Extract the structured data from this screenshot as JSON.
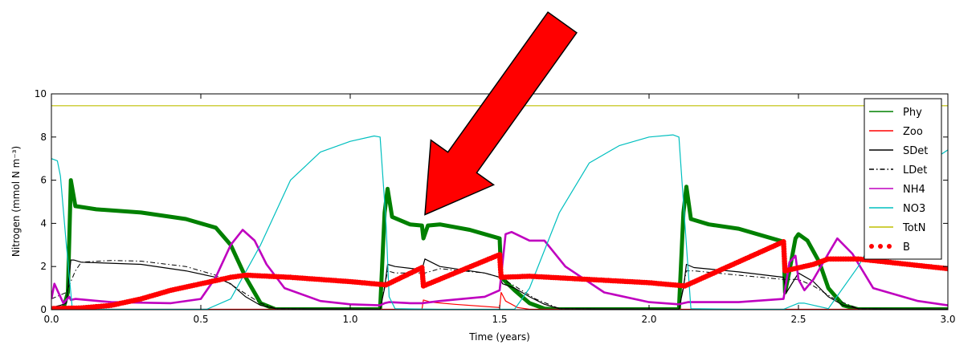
{
  "chart_data": {
    "type": "line",
    "title": "",
    "xlabel": "Time (years)",
    "ylabel": "Nitrogen (mmol N m⁻³)",
    "xlim": [
      0,
      3.0
    ],
    "ylim": [
      0,
      10
    ],
    "xticks": [
      0,
      0.5,
      1.0,
      1.5,
      2.0,
      2.5,
      3.0
    ],
    "xtick_labels": [
      "0.0",
      "0.5",
      "1.0",
      "1.5",
      "2.0",
      "2.5",
      "3.0"
    ],
    "yticks": [
      0,
      2,
      4,
      6,
      8,
      10
    ],
    "ytick_labels": [
      "0",
      "2",
      "4",
      "6",
      "8",
      "10"
    ],
    "grid": false,
    "legend_position": "top-right",
    "series": [
      {
        "name": "Phy",
        "color": "#008000",
        "style": "thick-band",
        "x": [
          0.0,
          0.04,
          0.055,
          0.065,
          0.08,
          0.15,
          0.3,
          0.45,
          0.55,
          0.6,
          0.65,
          0.7,
          0.75,
          1.0,
          1.1,
          1.115,
          1.125,
          1.14,
          1.2,
          1.24,
          1.245,
          1.26,
          1.3,
          1.4,
          1.5,
          1.505,
          1.55,
          1.6,
          1.65,
          1.7,
          2.0,
          2.1,
          2.115,
          2.125,
          2.14,
          2.2,
          2.3,
          2.45,
          2.455,
          2.47,
          2.49,
          2.5,
          2.53,
          2.57,
          2.6,
          2.65,
          2.7,
          3.0
        ],
        "y": [
          0.02,
          0.05,
          0.8,
          6.0,
          4.8,
          4.65,
          4.5,
          4.2,
          3.8,
          3.0,
          1.5,
          0.3,
          0.02,
          0.02,
          0.02,
          4.5,
          5.6,
          4.3,
          3.95,
          3.9,
          3.3,
          3.9,
          3.95,
          3.7,
          3.3,
          1.5,
          0.9,
          0.3,
          0.05,
          0.02,
          0.02,
          0.02,
          4.5,
          5.7,
          4.2,
          3.95,
          3.75,
          3.15,
          0.8,
          1.8,
          3.3,
          3.5,
          3.2,
          2.2,
          1.0,
          0.2,
          0.02,
          0.02
        ]
      },
      {
        "name": "Zoo",
        "color": "#ff0000",
        "style": "solid",
        "x": [
          0.0,
          1.12,
          1.2,
          1.24,
          1.245,
          1.27,
          1.35,
          1.5,
          1.505,
          1.52,
          1.56,
          1.6,
          2.0,
          3.0
        ],
        "y": [
          0.02,
          0.02,
          0.02,
          0.02,
          0.45,
          0.35,
          0.25,
          0.1,
          0.8,
          0.4,
          0.1,
          0.02,
          0.02,
          0.02
        ]
      },
      {
        "name": "SDet",
        "color": "#000000",
        "style": "solid",
        "x": [
          0.0,
          0.03,
          0.05,
          0.065,
          0.075,
          0.1,
          0.3,
          0.45,
          0.55,
          0.6,
          0.65,
          0.7,
          0.75,
          1.1,
          1.115,
          1.125,
          1.15,
          1.24,
          1.25,
          1.3,
          1.45,
          1.5,
          1.51,
          1.55,
          1.6,
          1.65,
          1.7,
          2.1,
          2.115,
          2.125,
          2.15,
          2.3,
          2.45,
          2.46,
          2.5,
          2.55,
          2.6,
          2.65,
          2.7,
          3.0
        ],
        "y": [
          0.1,
          0.2,
          0.3,
          2.3,
          2.3,
          2.2,
          2.1,
          1.8,
          1.5,
          1.2,
          0.6,
          0.2,
          0.05,
          0.02,
          1.0,
          2.1,
          2.0,
          1.85,
          2.35,
          2.0,
          1.7,
          1.5,
          1.2,
          1.0,
          0.6,
          0.25,
          0.05,
          0.02,
          1.0,
          2.1,
          1.95,
          1.75,
          1.5,
          0.8,
          1.7,
          1.3,
          0.6,
          0.2,
          0.05,
          0.02
        ]
      },
      {
        "name": "LDet",
        "color": "#000000",
        "style": "dash-dot",
        "x": [
          0.0,
          0.05,
          0.08,
          0.1,
          0.2,
          0.3,
          0.45,
          0.55,
          0.62,
          0.7,
          0.75,
          1.1,
          1.125,
          1.15,
          1.25,
          1.3,
          1.45,
          1.5,
          1.55,
          1.62,
          1.7,
          2.1,
          2.125,
          2.15,
          2.3,
          2.45,
          2.5,
          2.55,
          2.62,
          2.7,
          3.0
        ],
        "y": [
          0.5,
          0.8,
          1.8,
          2.2,
          2.28,
          2.25,
          2.0,
          1.6,
          1.0,
          0.3,
          0.05,
          0.02,
          1.8,
          1.7,
          1.7,
          1.9,
          1.7,
          1.5,
          1.1,
          0.5,
          0.05,
          0.02,
          1.8,
          1.8,
          1.6,
          1.4,
          1.4,
          1.1,
          0.5,
          0.05,
          0.02
        ]
      },
      {
        "name": "NH4",
        "color": "#bf00bf",
        "style": "thick-band-lower",
        "x": [
          0.0,
          0.01,
          0.02,
          0.04,
          0.06,
          0.065,
          0.08,
          0.2,
          0.4,
          0.5,
          0.55,
          0.6,
          0.64,
          0.68,
          0.72,
          0.78,
          0.9,
          1.0,
          1.1,
          1.115,
          1.13,
          1.2,
          1.24,
          1.3,
          1.45,
          1.5,
          1.52,
          1.54,
          1.6,
          1.65,
          1.72,
          1.85,
          2.0,
          2.1,
          2.115,
          2.13,
          2.3,
          2.45,
          2.47,
          2.49,
          2.5,
          2.52,
          2.55,
          2.6,
          2.63,
          2.68,
          2.75,
          2.9,
          3.0
        ],
        "y": [
          0.5,
          1.2,
          0.9,
          0.3,
          0.6,
          0.45,
          0.5,
          0.35,
          0.3,
          0.5,
          1.5,
          3.0,
          3.7,
          3.2,
          2.1,
          1.0,
          0.4,
          0.25,
          0.2,
          0.3,
          0.35,
          0.3,
          0.3,
          0.4,
          0.6,
          0.9,
          3.5,
          3.6,
          3.2,
          3.2,
          2.0,
          0.8,
          0.35,
          0.25,
          0.3,
          0.35,
          0.35,
          0.5,
          2.2,
          2.5,
          1.4,
          0.9,
          1.4,
          2.6,
          3.3,
          2.6,
          1.0,
          0.4,
          0.2
        ]
      },
      {
        "name": "NO3",
        "color": "#00bfbf",
        "style": "solid",
        "x": [
          0.0,
          0.02,
          0.03,
          0.05,
          0.07,
          0.1,
          0.3,
          0.52,
          0.6,
          0.7,
          0.8,
          0.9,
          1.0,
          1.08,
          1.1,
          1.12,
          1.13,
          1.15,
          1.3,
          1.5,
          1.52,
          1.55,
          1.6,
          1.7,
          1.8,
          1.9,
          2.0,
          2.08,
          2.1,
          2.12,
          2.14,
          2.3,
          2.45,
          2.5,
          2.52,
          2.6,
          2.7,
          2.8,
          2.9,
          3.0
        ],
        "y": [
          7.0,
          6.9,
          6.2,
          3.0,
          0.05,
          0.02,
          0.02,
          0.02,
          0.5,
          3.0,
          6.0,
          7.3,
          7.8,
          8.05,
          8.0,
          4.0,
          0.6,
          0.05,
          0.02,
          0.02,
          0.02,
          0.02,
          1.0,
          4.5,
          6.8,
          7.6,
          8.0,
          8.1,
          8.0,
          4.0,
          0.05,
          0.02,
          0.02,
          0.3,
          0.3,
          0.05,
          2.0,
          4.5,
          6.5,
          7.4
        ]
      },
      {
        "name": "TotN",
        "color": "#bfbf00",
        "style": "solid",
        "x": [
          0.0,
          3.0
        ],
        "y": [
          9.45,
          9.45
        ]
      },
      {
        "name": "B",
        "color": "#ff0000",
        "style": "dots",
        "x": [
          0.0,
          0.1,
          0.2,
          0.3,
          0.4,
          0.5,
          0.6,
          0.65,
          0.8,
          1.0,
          1.12,
          1.24,
          1.245,
          1.5,
          1.505,
          1.6,
          1.8,
          2.0,
          2.12,
          2.45,
          2.455,
          2.55,
          2.6,
          2.7,
          2.8,
          3.0
        ],
        "y": [
          0.05,
          0.08,
          0.2,
          0.5,
          0.9,
          1.2,
          1.5,
          1.6,
          1.5,
          1.3,
          1.15,
          1.95,
          1.1,
          2.55,
          1.5,
          1.55,
          1.4,
          1.25,
          1.1,
          3.15,
          1.8,
          2.1,
          2.35,
          2.35,
          2.2,
          1.9
        ]
      }
    ]
  },
  "annotation": {
    "arrow_color": "#ff0000",
    "points_to_x": 1.25,
    "points_to_y": 4.4
  }
}
